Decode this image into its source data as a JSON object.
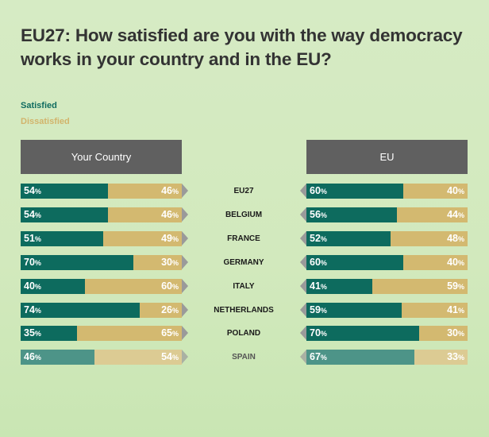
{
  "title": "EU27: How satisfied are you with the way democracy works in your country and in the EU?",
  "legend": {
    "satisfied": "Satisfied",
    "dissatisfied": "Dissatisfied"
  },
  "panels": {
    "left_header": "Your Country",
    "right_header": "EU"
  },
  "colors": {
    "satisfied": "#0d6b5e",
    "dissatisfied": "#d3b970",
    "header": "#606060"
  },
  "chart_data": {
    "type": "bar",
    "title": "EU27: How satisfied are you with the way democracy works in your country and in the EU?",
    "categories": [
      "EU27",
      "BELGIUM",
      "FRANCE",
      "GERMANY",
      "ITALY",
      "NETHERLANDS",
      "POLAND",
      "SPAIN"
    ],
    "groups": [
      {
        "name": "Your Country",
        "series": [
          {
            "name": "Satisfied",
            "values": [
              54,
              54,
              51,
              70,
              40,
              74,
              35,
              46
            ]
          },
          {
            "name": "Dissatisfied",
            "values": [
              46,
              46,
              49,
              30,
              60,
              26,
              65,
              54
            ]
          }
        ]
      },
      {
        "name": "EU",
        "series": [
          {
            "name": "Satisfied",
            "values": [
              60,
              56,
              52,
              60,
              41,
              59,
              70,
              67
            ]
          },
          {
            "name": "Dissatisfied",
            "values": [
              40,
              44,
              48,
              40,
              59,
              41,
              30,
              33
            ]
          }
        ]
      }
    ],
    "unit": "%",
    "stacked": true,
    "legend_position": "top-left"
  }
}
